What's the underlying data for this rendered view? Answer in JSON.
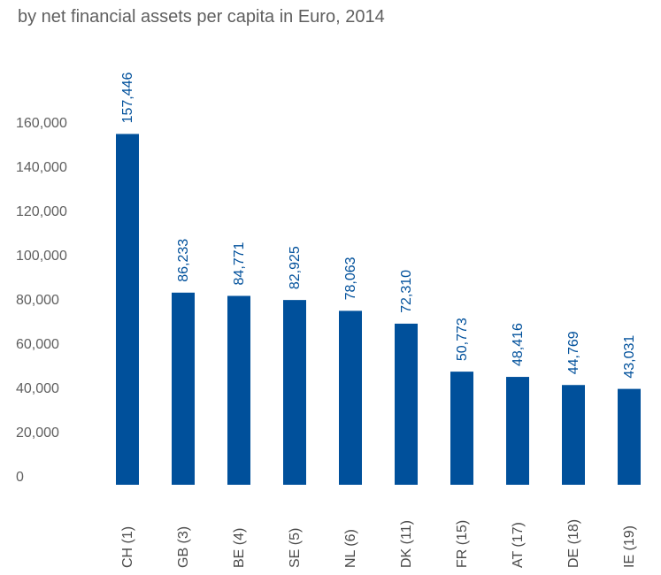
{
  "chart_data": {
    "type": "bar",
    "title": "",
    "subtitle": "by net financial assets per capita in Euro, 2014",
    "xlabel": "",
    "ylabel": "",
    "categories": [
      "CH (1)",
      "GB (3)",
      "BE (4)",
      "SE (5)",
      "NL (6)",
      "DK (11)",
      "FR (15)",
      "AT (17)",
      "DE (18)",
      "IE (19)"
    ],
    "values": [
      157446,
      86233,
      84771,
      82925,
      78063,
      72310,
      50773,
      48416,
      44769,
      43031
    ],
    "value_labels": [
      "157,446",
      "86,233",
      "84,771",
      "82,925",
      "78,063",
      "72,310",
      "50,773",
      "48,416",
      "44,769",
      "43,031"
    ],
    "yticks": [
      0,
      20000,
      40000,
      60000,
      80000,
      100000,
      120000,
      140000,
      160000
    ],
    "ytick_labels": [
      "0",
      "20,000",
      "40,000",
      "60,000",
      "80,000",
      "100,000",
      "120,000",
      "140,000",
      "160,000"
    ],
    "ylim": [
      0,
      160000
    ],
    "grid": false,
    "legend": "none",
    "colors": {
      "bar": "#00509b",
      "value_label": "#00509b",
      "text": "#5f5f5f"
    }
  }
}
